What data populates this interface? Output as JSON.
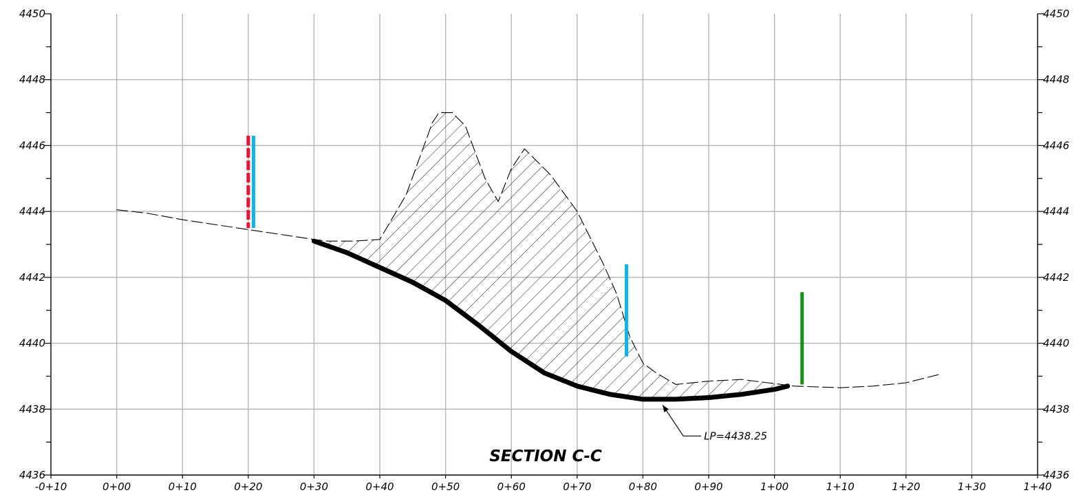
{
  "chart_data": {
    "type": "line",
    "title": "SECTION C-C",
    "xlim": [
      -10,
      140
    ],
    "ylim": [
      4436,
      4450
    ],
    "grid": true,
    "x_tick_labels": [
      "-0+10",
      "0+00",
      "0+10",
      "0+20",
      "0+30",
      "0+40",
      "0+50",
      "0+60",
      "0+70",
      "0+80",
      "0+90",
      "1+00",
      "1+10",
      "1+20",
      "1+30",
      "1+40"
    ],
    "y_tick_labels": [
      "4436",
      "4438",
      "4440",
      "4442",
      "4444",
      "4446",
      "4448",
      "4450"
    ],
    "series": [
      {
        "style": "dashed",
        "points": [
          [
            0,
            4444.05
          ],
          [
            4.5,
            4443.95
          ],
          [
            10,
            4443.75
          ],
          [
            20,
            4443.45
          ],
          [
            25,
            4443.3
          ],
          [
            30,
            4443.15
          ],
          [
            32,
            4443.1
          ],
          [
            36,
            4443.1
          ],
          [
            40,
            4443.15
          ],
          [
            44,
            4444.5
          ],
          [
            48,
            4446.7
          ],
          [
            49,
            4447
          ],
          [
            51,
            4447
          ],
          [
            53,
            4446.6
          ],
          [
            56,
            4445
          ],
          [
            58,
            4444.3
          ],
          [
            60,
            4445.3
          ],
          [
            62,
            4445.9
          ],
          [
            66,
            4445.1
          ],
          [
            70,
            4444
          ],
          [
            74,
            4442.4
          ],
          [
            76,
            4441.5
          ],
          [
            78,
            4440.2
          ],
          [
            80,
            4439.4
          ],
          [
            82,
            4439.1
          ],
          [
            85,
            4438.75
          ],
          [
            90,
            4438.85
          ],
          [
            95,
            4438.9
          ],
          [
            99,
            4438.8
          ],
          [
            103,
            4438.7
          ],
          [
            110,
            4438.65
          ],
          [
            115,
            4438.7
          ],
          [
            120,
            4438.8
          ],
          [
            125,
            4439.05
          ]
        ]
      },
      {
        "style": "solid-heavy",
        "points": [
          [
            30,
            4443.1
          ],
          [
            35,
            4442.75
          ],
          [
            40,
            4442.3
          ],
          [
            45,
            4441.85
          ],
          [
            50,
            4441.3
          ],
          [
            55,
            4440.55
          ],
          [
            60,
            4439.75
          ],
          [
            65,
            4439.1
          ],
          [
            70,
            4438.7
          ],
          [
            75,
            4438.45
          ],
          [
            80,
            4438.3
          ],
          [
            85,
            4438.3
          ],
          [
            90,
            4438.35
          ],
          [
            95,
            4438.45
          ],
          [
            100,
            4438.6
          ],
          [
            102,
            4438.7
          ]
        ]
      }
    ],
    "markers": [
      {
        "color": "#e8123c",
        "style": "dashed",
        "x": 20,
        "y_bottom": 4443.5,
        "y_top": 4446.3
      },
      {
        "color": "#11b4ee",
        "style": "solid",
        "x": 20.8,
        "y_bottom": 4443.5,
        "y_top": 4446.3
      },
      {
        "color": "#11b4ee",
        "style": "solid",
        "x": 77.5,
        "y_bottom": 4439.6,
        "y_top": 4442.4
      },
      {
        "color": "#149414",
        "style": "solid",
        "x": 104.2,
        "y_bottom": 4438.75,
        "y_top": 4441.55
      }
    ],
    "annotations": [
      {
        "text": "LP=4438.25",
        "x": 83,
        "y": 4438.25
      }
    ]
  }
}
